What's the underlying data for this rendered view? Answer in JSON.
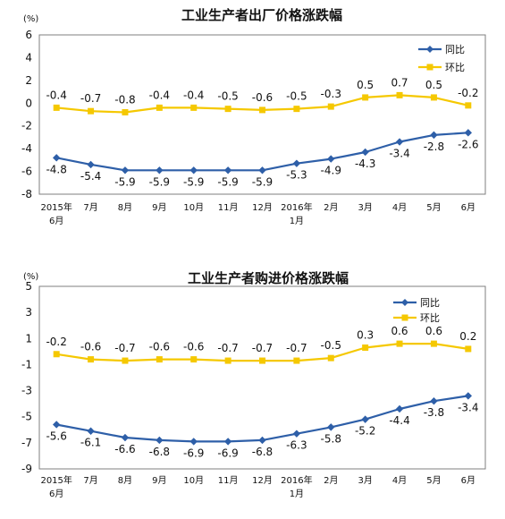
{
  "chart_data": [
    {
      "type": "line",
      "title": "工业生产者出厂价格涨跌幅",
      "unit": "(%)",
      "categories": [
        "2015年|6月",
        "7月",
        "8月",
        "9月",
        "10月",
        "11月",
        "12月",
        "2016年|1月",
        "2月",
        "3月",
        "4月",
        "5月",
        "6月"
      ],
      "ylim": [
        -8,
        6
      ],
      "yticks": [
        -8,
        -6,
        -4,
        -2,
        0,
        2,
        4,
        6
      ],
      "legend_position": "top-right",
      "series": [
        {
          "name": "同比",
          "color": "#2e5fa8",
          "marker": "diamond",
          "label_position": "below",
          "values": [
            -4.8,
            -5.4,
            -5.9,
            -5.9,
            -5.9,
            -5.9,
            -5.9,
            -5.3,
            -4.9,
            -4.3,
            -3.4,
            -2.8,
            -2.6
          ]
        },
        {
          "name": "环比",
          "color": "#f5c800",
          "marker": "square",
          "label_position": "above",
          "values": [
            -0.4,
            -0.7,
            -0.8,
            -0.4,
            -0.4,
            -0.5,
            -0.6,
            -0.5,
            -0.3,
            0.5,
            0.7,
            0.5,
            -0.2
          ]
        }
      ]
    },
    {
      "type": "line",
      "title": "工业生产者购进价格涨跌幅",
      "unit": "(%)",
      "categories": [
        "2015年|6月",
        "7月",
        "8月",
        "9月",
        "10月",
        "11月",
        "12月",
        "2016年|1月",
        "2月",
        "3月",
        "4月",
        "5月",
        "6月"
      ],
      "ylim": [
        -9,
        5
      ],
      "yticks": [
        -9,
        -7,
        -5,
        -3,
        -1,
        1,
        3,
        5
      ],
      "legend_position": "top-right",
      "series": [
        {
          "name": "同比",
          "color": "#2e5fa8",
          "marker": "diamond",
          "label_position": "below",
          "values": [
            -5.6,
            -6.1,
            -6.6,
            -6.8,
            -6.9,
            -6.9,
            -6.8,
            -6.3,
            -5.8,
            -5.2,
            -4.4,
            -3.8,
            -3.4
          ]
        },
        {
          "name": "环比",
          "color": "#f5c800",
          "marker": "square",
          "label_position": "above",
          "values": [
            -0.2,
            -0.6,
            -0.7,
            -0.6,
            -0.6,
            -0.7,
            -0.7,
            -0.7,
            -0.5,
            0.3,
            0.6,
            0.6,
            0.2
          ]
        }
      ]
    }
  ]
}
